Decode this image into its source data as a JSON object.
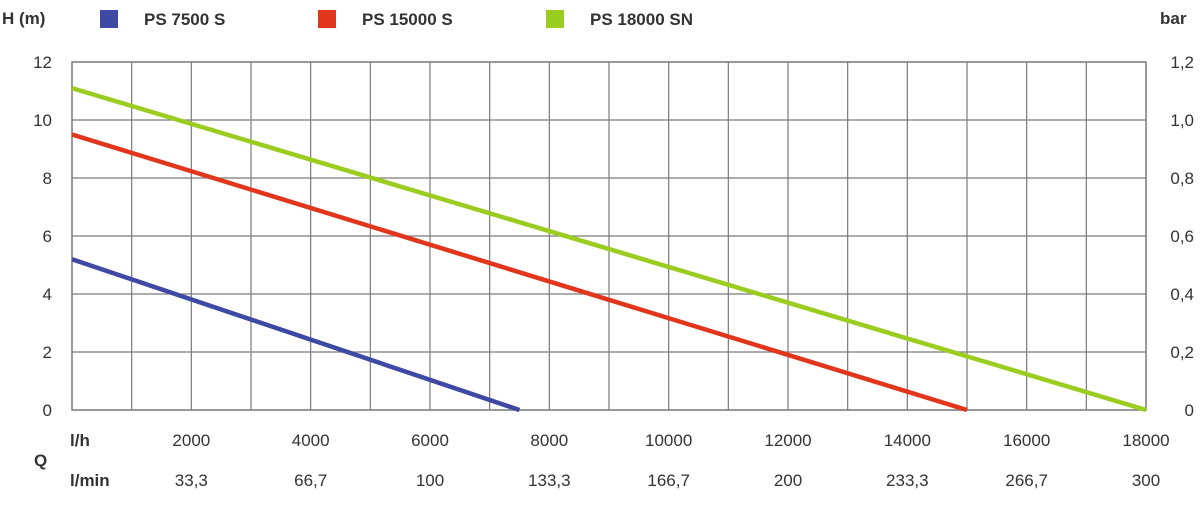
{
  "chart_data": {
    "type": "line",
    "units": {
      "y_left": "H (m)",
      "y_right": "bar",
      "q_label": "Q",
      "x_primary": "l/h",
      "x_secondary": "l/min"
    },
    "x": {
      "range": [
        0,
        18000
      ],
      "tick_values": [
        2000,
        4000,
        6000,
        8000,
        10000,
        12000,
        14000,
        16000,
        18000
      ],
      "tick_labels": [
        "2000",
        "4000",
        "6000",
        "8000",
        "10000",
        "12000",
        "14000",
        "16000",
        "18000"
      ],
      "secondary_tick_labels": [
        "33,3",
        "66,7",
        "100",
        "133,3",
        "166,7",
        "200",
        "233,3",
        "266,7",
        "300"
      ],
      "grid_step": 1000
    },
    "y_left": {
      "range": [
        0,
        12
      ],
      "tick_values": [
        0,
        2,
        4,
        6,
        8,
        10,
        12
      ],
      "tick_labels": [
        "0",
        "2",
        "4",
        "6",
        "8",
        "10",
        "12"
      ],
      "grid_step": 2
    },
    "y_right": {
      "tick_labels": [
        "0",
        "0,2",
        "0,4",
        "0,6",
        "0,8",
        "1,0",
        "1,2"
      ]
    },
    "grid": true,
    "legend_position": "top",
    "series": [
      {
        "name": "PS 7500 S",
        "color": "#3d49a3",
        "points": [
          [
            0,
            5.2
          ],
          [
            7500,
            0
          ]
        ]
      },
      {
        "name": "PS 15000 S",
        "color": "#e1361c",
        "points": [
          [
            0,
            9.5
          ],
          [
            15000,
            0
          ]
        ]
      },
      {
        "name": "PS 18000 SN",
        "color": "#9bcc20",
        "points": [
          [
            0,
            11.1
          ],
          [
            18000,
            0
          ]
        ]
      }
    ]
  }
}
